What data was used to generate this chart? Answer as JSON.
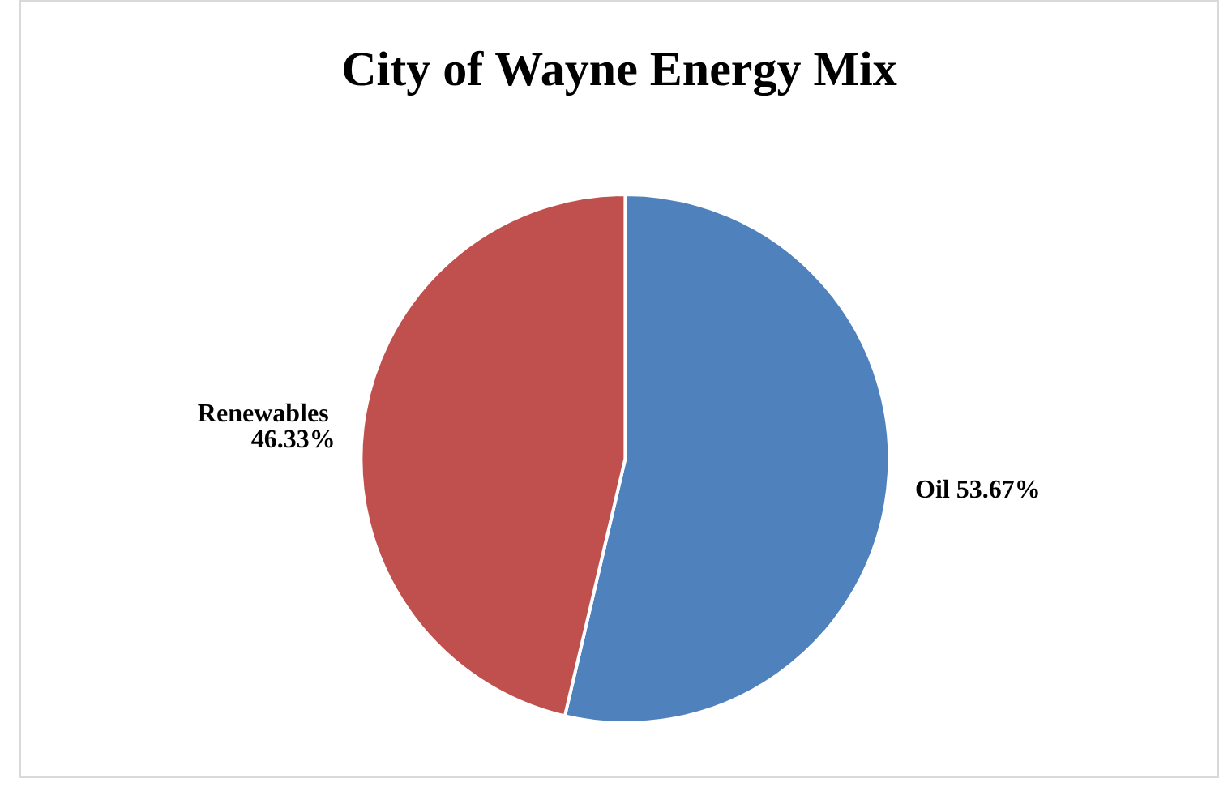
{
  "chart_data": {
    "type": "pie",
    "title": "City of Wayne Energy Mix",
    "categories": [
      "Oil",
      "Renewables"
    ],
    "values": [
      53.67,
      46.33
    ],
    "value_labels": [
      "53.67%",
      "46.33%"
    ],
    "colors": [
      "#4f81bd",
      "#c0504d"
    ],
    "legend": false
  }
}
